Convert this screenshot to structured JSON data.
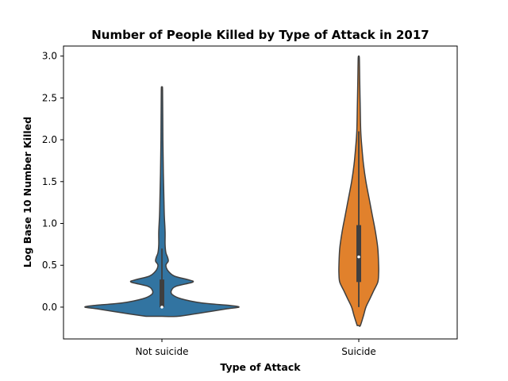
{
  "chart_data": {
    "type": "violin",
    "title": "Number of People Killed by Type of Attack in 2017",
    "xlabel": "Type of Attack",
    "ylabel": "Log Base 10 Number Killed",
    "ylim": [
      -0.38,
      3.12
    ],
    "yticks": [
      "0.0",
      "0.5",
      "1.0",
      "1.5",
      "2.0",
      "2.5",
      "3.0"
    ],
    "yticks_values": [
      0,
      0.5,
      1.0,
      1.5,
      2.0,
      2.5,
      3.0
    ],
    "grid": false,
    "legend": "none",
    "categories": [
      "Not suicide",
      "Suicide"
    ],
    "series": [
      {
        "category": "Not suicide",
        "color": "#3274a1",
        "min": -0.11,
        "max": 2.59,
        "whisker_low": 0.0,
        "whisker_high": 0.7,
        "q1": 0.0,
        "q3": 0.33,
        "median": 0.0,
        "profile": [
          [
            -0.11,
            0.2
          ],
          [
            -0.08,
            0.42
          ],
          [
            -0.05,
            0.62
          ],
          [
            -0.02,
            0.82
          ],
          [
            0.0,
            0.97
          ],
          [
            0.02,
            0.86
          ],
          [
            0.05,
            0.5
          ],
          [
            0.1,
            0.24
          ],
          [
            0.15,
            0.13
          ],
          [
            0.2,
            0.12
          ],
          [
            0.25,
            0.18
          ],
          [
            0.3,
            0.39
          ],
          [
            0.33,
            0.32
          ],
          [
            0.37,
            0.16
          ],
          [
            0.43,
            0.08
          ],
          [
            0.5,
            0.05
          ],
          [
            0.55,
            0.08
          ],
          [
            0.6,
            0.07
          ],
          [
            0.65,
            0.05
          ],
          [
            0.75,
            0.04
          ],
          [
            0.9,
            0.04
          ],
          [
            1.1,
            0.03
          ],
          [
            1.3,
            0.025
          ],
          [
            1.6,
            0.018
          ],
          [
            2.0,
            0.012
          ],
          [
            2.59,
            0.008
          ]
        ]
      },
      {
        "category": "Suicide",
        "color": "#e1812c",
        "min": -0.22,
        "max": 2.98,
        "whisker_low": 0.0,
        "whisker_high": 2.1,
        "q1": 0.3,
        "q3": 0.98,
        "median": 0.6,
        "profile": [
          [
            -0.22,
            0.02
          ],
          [
            -0.1,
            0.06
          ],
          [
            0.0,
            0.09
          ],
          [
            0.1,
            0.14
          ],
          [
            0.2,
            0.19
          ],
          [
            0.3,
            0.24
          ],
          [
            0.4,
            0.25
          ],
          [
            0.5,
            0.25
          ],
          [
            0.7,
            0.24
          ],
          [
            0.9,
            0.21
          ],
          [
            1.1,
            0.17
          ],
          [
            1.3,
            0.13
          ],
          [
            1.5,
            0.09
          ],
          [
            1.7,
            0.06
          ],
          [
            1.9,
            0.04
          ],
          [
            2.1,
            0.025
          ],
          [
            2.4,
            0.018
          ],
          [
            2.7,
            0.012
          ],
          [
            2.98,
            0.007
          ]
        ]
      }
    ]
  }
}
